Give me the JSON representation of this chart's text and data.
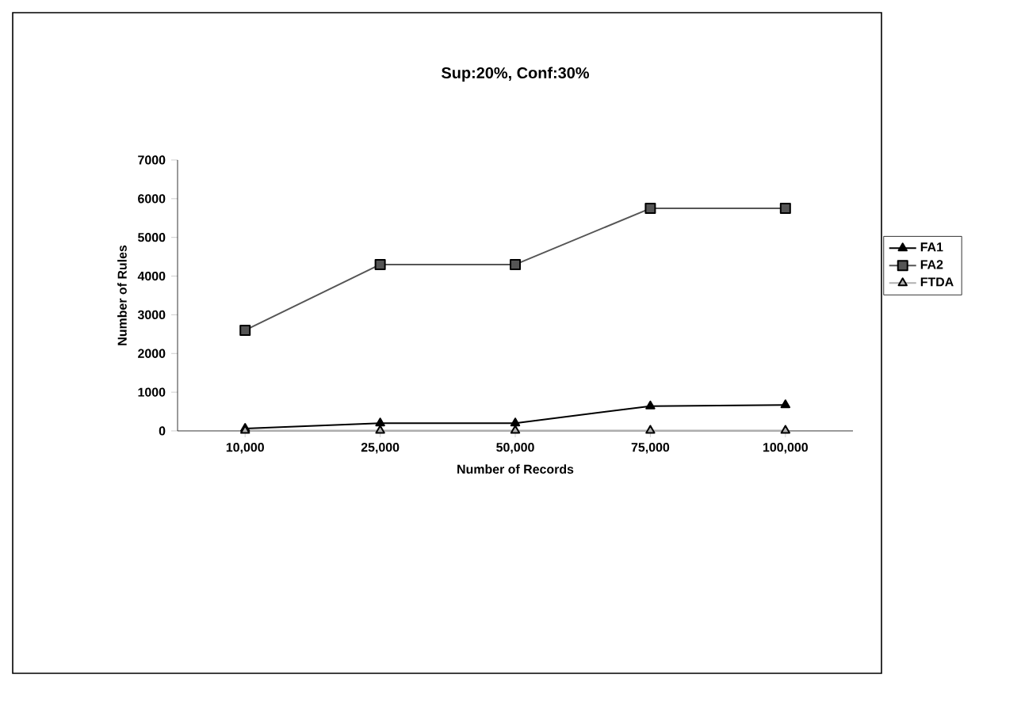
{
  "chart_data": {
    "type": "line",
    "title": "Sup:20%, Conf:30%",
    "xlabel": "Number of Records",
    "ylabel": "Number of Rules",
    "categories": [
      "10,000",
      "25,000",
      "50,000",
      "75,000",
      "100,000"
    ],
    "series": [
      {
        "name": "FA1",
        "color": "#000000",
        "marker": "triangle",
        "values": [
          60,
          200,
          200,
          640,
          670
        ]
      },
      {
        "name": "FA2",
        "color": "#555555",
        "marker": "square",
        "values": [
          2600,
          4300,
          4300,
          5750,
          5750
        ]
      },
      {
        "name": "FTDA",
        "color": "#b0b0b0",
        "marker": "triangle",
        "values": [
          10,
          10,
          10,
          10,
          10
        ]
      }
    ],
    "ylim": [
      0,
      7000
    ],
    "yticks": [
      0,
      1000,
      2000,
      3000,
      4000,
      5000,
      6000,
      7000
    ],
    "grid": false,
    "legend": "right",
    "line_style": "solid"
  }
}
